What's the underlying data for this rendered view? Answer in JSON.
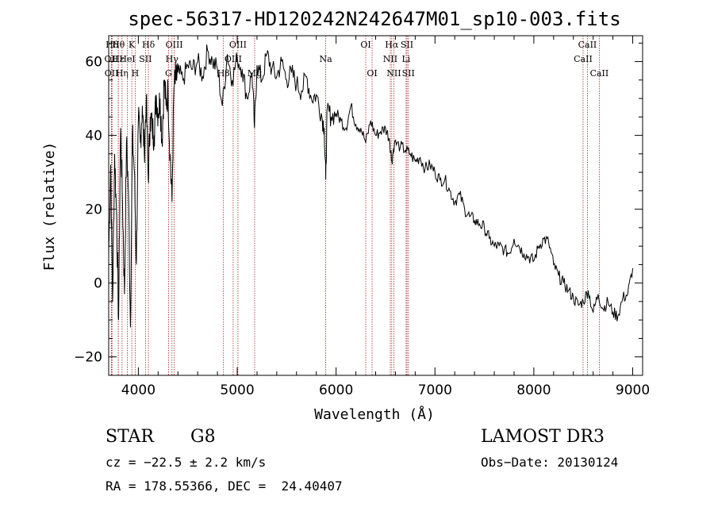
{
  "chart_data": {
    "type": "line",
    "title": "spec-56317-HD120242N242647M01_sp10-003.fits",
    "xlabel": "Wavelength (Å)",
    "ylabel": "Flux (relative)",
    "xlim": [
      3700,
      9100
    ],
    "ylim": [
      -25,
      67
    ],
    "xticks": [
      4000,
      5000,
      6000,
      7000,
      8000,
      9000
    ],
    "yticks": [
      -20,
      0,
      20,
      40,
      60
    ],
    "grid": false,
    "lines": [
      {
        "label": "Hδ",
        "x": 3734,
        "row": 0
      },
      {
        "label": "OII",
        "x": 3727,
        "row": 1
      },
      {
        "label": "OII",
        "x": 3729,
        "row": 2
      },
      {
        "label": "Hε",
        "x": 3797,
        "row": 1
      },
      {
        "label": "Hθ",
        "x": 3798,
        "row": 0
      },
      {
        "label": "Hη",
        "x": 3835,
        "row": 2
      },
      {
        "label": "HeI",
        "x": 3889,
        "row": 1
      },
      {
        "label": "K",
        "x": 3934,
        "row": 0
      },
      {
        "label": "H",
        "x": 3968,
        "row": 2
      },
      {
        "label": "SII",
        "x": 4072,
        "row": 1
      },
      {
        "label": "Hδ",
        "x": 4102,
        "row": 0
      },
      {
        "label": "OIII",
        "x": 4363,
        "row": 0
      },
      {
        "label": "Hγ",
        "x": 4340,
        "row": 1
      },
      {
        "label": "G",
        "x": 4305,
        "row": 2
      },
      {
        "label": "OIII",
        "x": 5007,
        "row": 0
      },
      {
        "label": "OIII",
        "x": 4959,
        "row": 1
      },
      {
        "label": "Hβ",
        "x": 4861,
        "row": 2
      },
      {
        "label": "Mg",
        "x": 5176,
        "row": 2
      },
      {
        "label": "Na",
        "x": 5895,
        "row": 1
      },
      {
        "label": "OI",
        "x": 6300,
        "row": 0
      },
      {
        "label": "OI",
        "x": 6364,
        "row": 2
      },
      {
        "label": "Hα",
        "x": 6563,
        "row": 0
      },
      {
        "label": "SII",
        "x": 6717,
        "row": 0
      },
      {
        "label": "NII",
        "x": 6548,
        "row": 1
      },
      {
        "label": "Li",
        "x": 6708,
        "row": 1
      },
      {
        "label": "NII",
        "x": 6584,
        "row": 2
      },
      {
        "label": "SII",
        "x": 6731,
        "row": 2
      },
      {
        "label": "CaII",
        "x": 8542,
        "row": 0
      },
      {
        "label": "CaII",
        "x": 8498,
        "row": 1
      },
      {
        "label": "CaII",
        "x": 8662,
        "row": 2
      }
    ],
    "series": [
      {
        "name": "flux",
        "x": [
          3700,
          3720,
          3740,
          3760,
          3780,
          3800,
          3820,
          3840,
          3860,
          3880,
          3900,
          3920,
          3940,
          3960,
          3980,
          4000,
          4020,
          4040,
          4060,
          4080,
          4100,
          4120,
          4140,
          4160,
          4180,
          4200,
          4220,
          4240,
          4260,
          4280,
          4300,
          4320,
          4340,
          4360,
          4380,
          4400,
          4450,
          4500,
          4550,
          4600,
          4650,
          4700,
          4750,
          4800,
          4850,
          4900,
          4950,
          5000,
          5050,
          5100,
          5150,
          5175,
          5200,
          5250,
          5300,
          5350,
          5400,
          5450,
          5500,
          5550,
          5600,
          5650,
          5700,
          5750,
          5800,
          5850,
          5880,
          5895,
          5910,
          5950,
          6000,
          6050,
          6100,
          6150,
          6200,
          6250,
          6300,
          6350,
          6400,
          6450,
          6500,
          6540,
          6563,
          6590,
          6650,
          6700,
          6750,
          6800,
          6850,
          6900,
          6950,
          7000,
          7050,
          7100,
          7150,
          7200,
          7250,
          7300,
          7350,
          7400,
          7450,
          7500,
          7550,
          7600,
          7650,
          7700,
          7750,
          7800,
          7850,
          7900,
          7950,
          8000,
          8050,
          8100,
          8150,
          8200,
          8250,
          8300,
          8350,
          8400,
          8450,
          8500,
          8550,
          8600,
          8650,
          8700,
          8750,
          8800,
          8850,
          8900,
          8950,
          9000
        ],
        "y": [
          8,
          32,
          -5,
          35,
          18,
          -10,
          42,
          22,
          -3,
          38,
          25,
          -12,
          40,
          30,
          5,
          44,
          38,
          48,
          35,
          50,
          28,
          45,
          42,
          40,
          51,
          46,
          50,
          38,
          55,
          48,
          52,
          35,
          22,
          53,
          55,
          57,
          55,
          59,
          58,
          60,
          56,
          63,
          60,
          58,
          48,
          62,
          55,
          61,
          58,
          50,
          57,
          42,
          59,
          55,
          62,
          58,
          56,
          60,
          55,
          57,
          54,
          52,
          56,
          50,
          51,
          46,
          42,
          28,
          47,
          45,
          46,
          44,
          42,
          48,
          43,
          42,
          38,
          44,
          40,
          41,
          42,
          39,
          33,
          38,
          37,
          36,
          35,
          33,
          34,
          31,
          32,
          30,
          28,
          28,
          25,
          22,
          24,
          20,
          18,
          17,
          16,
          15,
          12,
          10,
          10,
          9,
          8,
          12,
          10,
          8,
          7,
          6,
          10,
          12,
          11,
          5,
          2,
          0,
          -2,
          -4,
          -6,
          -5,
          -2,
          -8,
          -3,
          -7,
          -5,
          -8,
          -9,
          -4,
          -3,
          4
        ]
      }
    ]
  },
  "footer": {
    "object_class": "STAR",
    "subclass": "G8",
    "survey": "LAMOST DR3",
    "cz": "cz = −22.5 ± 2.2 km/s",
    "obs_date": "Obs−Date: 20130124",
    "coords": "RA = 178.55366, DEC =  24.40407"
  }
}
